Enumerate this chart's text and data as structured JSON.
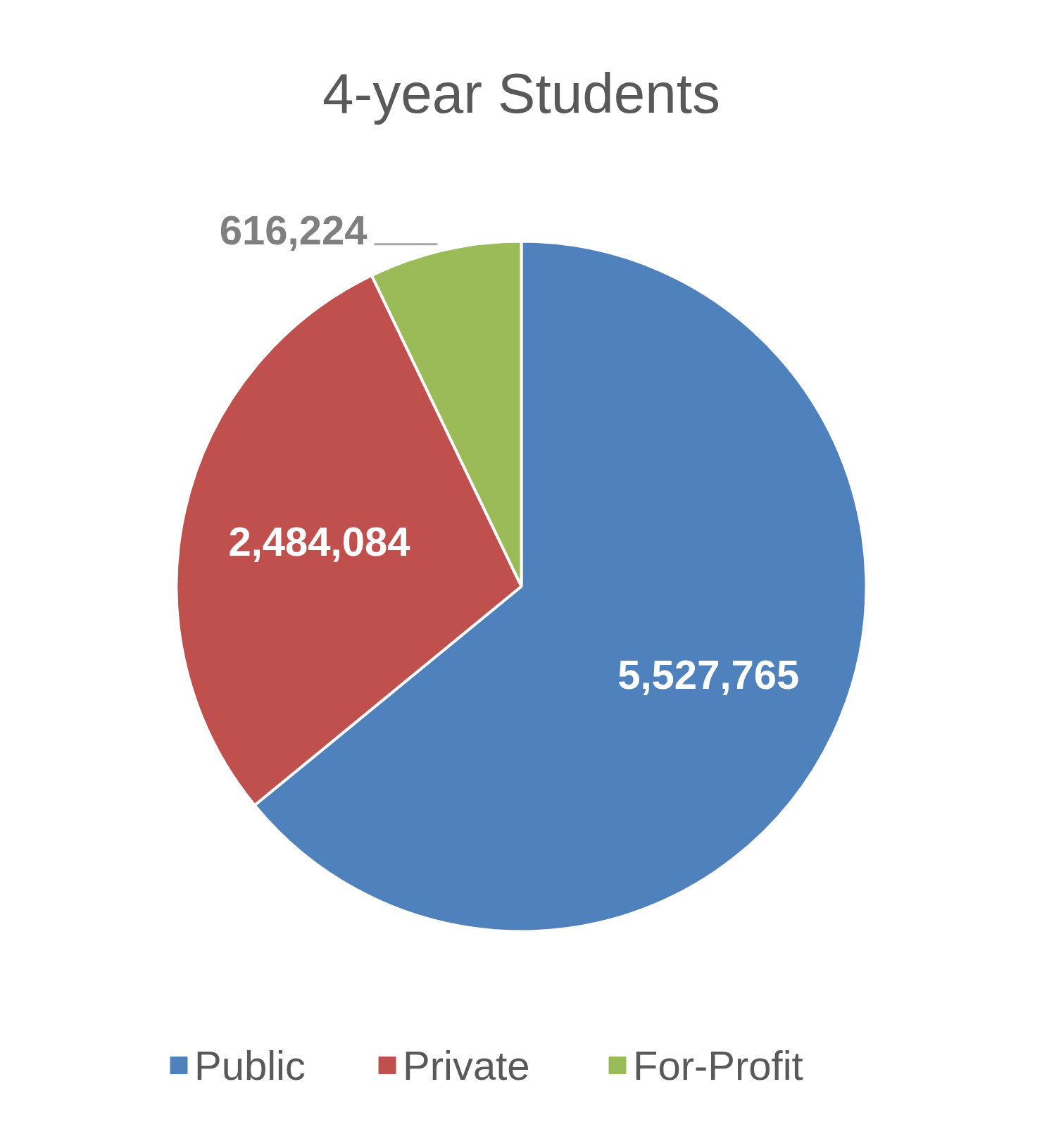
{
  "chart_data": {
    "type": "pie",
    "title": "4-year Students",
    "categories": [
      "Public",
      "Private",
      "For-Profit"
    ],
    "values": [
      5527765,
      2484084,
      616224
    ],
    "colors": [
      "#4f81bd",
      "#c0504d",
      "#9bbb59"
    ],
    "value_labels": [
      "5,527,765",
      "2,484,084",
      "616,224"
    ],
    "legend": "bottom"
  }
}
